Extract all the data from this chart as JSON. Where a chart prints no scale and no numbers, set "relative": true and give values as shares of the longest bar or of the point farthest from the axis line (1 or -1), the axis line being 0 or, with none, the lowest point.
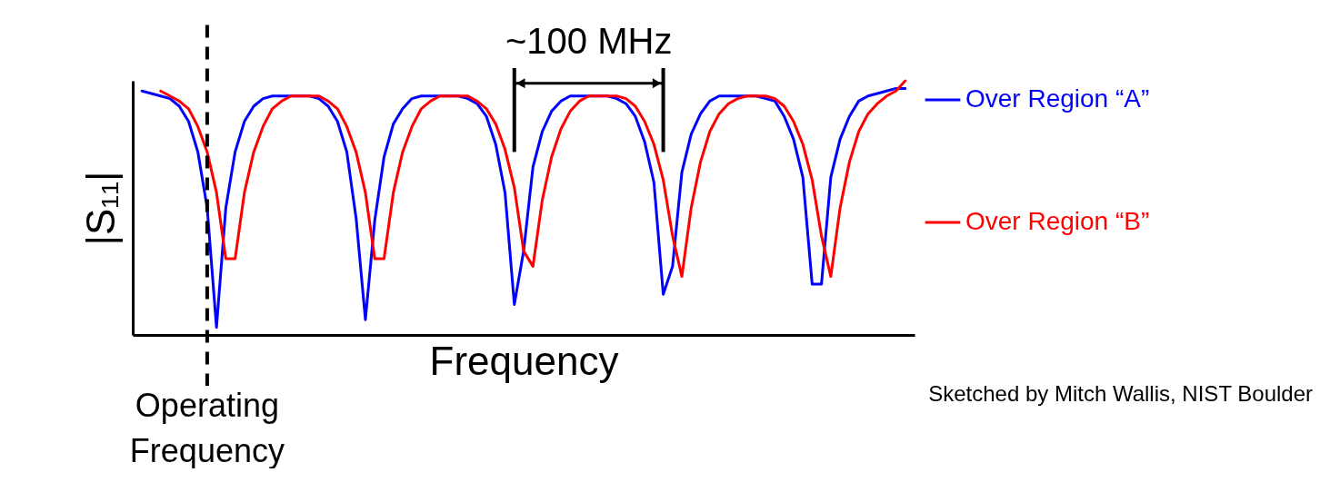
{
  "chart_data": {
    "type": "line",
    "relative": true,
    "xlabel": "Frequency",
    "ylabel": "|S₁₁|",
    "legend": "right",
    "annotations": [
      "~100 MHz",
      "Operating Frequency",
      "Sketched by Mitch Wallis, NIST Boulder"
    ],
    "categories": [
      null,
      null,
      null,
      null,
      null,
      null,
      null,
      null,
      null,
      null,
      null,
      null,
      null,
      null,
      null,
      null,
      null,
      null,
      null,
      null,
      null,
      null,
      null,
      null,
      null,
      null,
      null,
      null,
      null,
      null,
      null,
      null,
      null,
      null,
      null,
      null,
      null,
      null,
      null,
      null,
      null,
      null,
      null,
      null,
      null,
      null,
      null,
      null,
      null,
      null,
      null,
      null,
      null,
      null,
      null,
      null,
      null,
      null,
      null,
      null,
      null,
      null,
      null,
      null,
      null,
      null,
      null,
      null,
      null,
      null,
      null,
      null,
      null,
      null,
      null,
      null,
      null,
      null,
      null,
      null,
      null,
      null,
      null
    ],
    "series": [
      {
        "name": "Over Region “A”",
        "color": "#0000ff",
        "values": [
          0.96,
          0.95,
          0.94,
          0.93,
          0.9,
          0.84,
          0.72,
          0.5,
          0.03,
          0.5,
          0.72,
          0.84,
          0.9,
          0.93,
          0.94,
          0.94,
          0.94,
          0.94,
          0.94,
          0.93,
          0.9,
          0.84,
          0.72,
          0.46,
          0.06,
          0.45,
          0.7,
          0.83,
          0.89,
          0.93,
          0.94,
          0.94,
          0.94,
          0.94,
          0.94,
          0.93,
          0.91,
          0.86,
          0.75,
          0.56,
          0.12,
          0.33,
          0.66,
          0.8,
          0.88,
          0.92,
          0.94,
          0.94,
          0.94,
          0.94,
          0.94,
          0.93,
          0.91,
          0.86,
          0.76,
          0.6,
          0.16,
          0.27,
          0.64,
          0.79,
          0.87,
          0.92,
          0.94,
          0.94,
          0.94,
          0.94,
          0.94,
          0.93,
          0.92,
          0.86,
          0.77,
          0.62,
          0.2,
          0.2,
          0.62,
          0.77,
          0.86,
          0.92,
          0.94,
          0.95,
          0.96,
          0.97,
          0.97
        ]
      },
      {
        "name": "Over Region “B”",
        "color": "#ff0000",
        "values": [
          null,
          null,
          0.96,
          0.94,
          0.92,
          0.89,
          0.82,
          0.72,
          0.56,
          0.3,
          0.3,
          0.56,
          0.72,
          0.82,
          0.89,
          0.92,
          0.94,
          0.94,
          0.94,
          0.94,
          0.92,
          0.89,
          0.82,
          0.72,
          0.56,
          0.3,
          0.3,
          0.56,
          0.72,
          0.82,
          0.89,
          0.92,
          0.94,
          0.94,
          0.94,
          0.94,
          0.92,
          0.89,
          0.83,
          0.73,
          0.58,
          0.33,
          0.27,
          0.53,
          0.7,
          0.81,
          0.88,
          0.92,
          0.94,
          0.94,
          0.94,
          0.94,
          0.93,
          0.9,
          0.84,
          0.75,
          0.61,
          0.39,
          0.23,
          0.5,
          0.68,
          0.8,
          0.87,
          0.91,
          0.93,
          0.94,
          0.94,
          0.94,
          0.93,
          0.9,
          0.84,
          0.75,
          0.61,
          0.39,
          0.23,
          0.5,
          0.68,
          0.8,
          0.87,
          0.91,
          0.94,
          0.96,
          1
        ]
      }
    ]
  }
}
